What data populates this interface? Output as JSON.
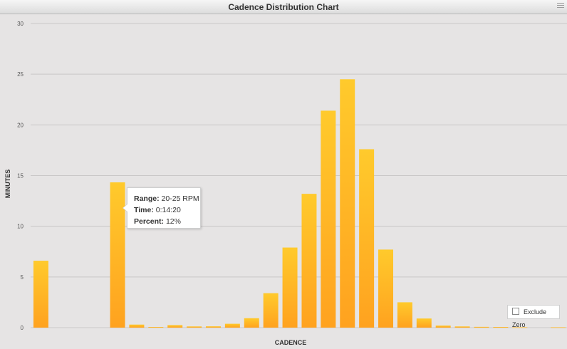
{
  "window": {
    "title": "Cadence Distribution Chart"
  },
  "chart_data": {
    "type": "bar",
    "title": "Cadence Distribution Chart",
    "xlabel": "CADENCE",
    "ylabel": "MINUTES",
    "ylim": [
      0,
      30
    ],
    "yticks": [
      0,
      5,
      10,
      15,
      20,
      25,
      30
    ],
    "grid": true,
    "colors": {
      "bar_top": "#ffca2c",
      "bar_bottom": "#ffa21f",
      "grid": "#c9c7c7"
    },
    "values": [
      6.6,
      0,
      0,
      0,
      14.33,
      0.3,
      0.07,
      0.25,
      0.12,
      0.13,
      0.38,
      0.93,
      3.4,
      7.9,
      13.2,
      21.4,
      24.5,
      17.6,
      7.7,
      2.5,
      0.9,
      0.2,
      0.12,
      0.08,
      0.07,
      0.04,
      0,
      0.04
    ]
  },
  "tooltip": {
    "range_label": "Range:",
    "range_value": "20-25 RPM",
    "time_label": "Time:",
    "time_value": "0:14:20",
    "percent_label": "Percent:",
    "percent_value": "12%"
  },
  "controls": {
    "exclude_zero_label": "Exclude Zero",
    "exclude_zero_checked": false
  }
}
